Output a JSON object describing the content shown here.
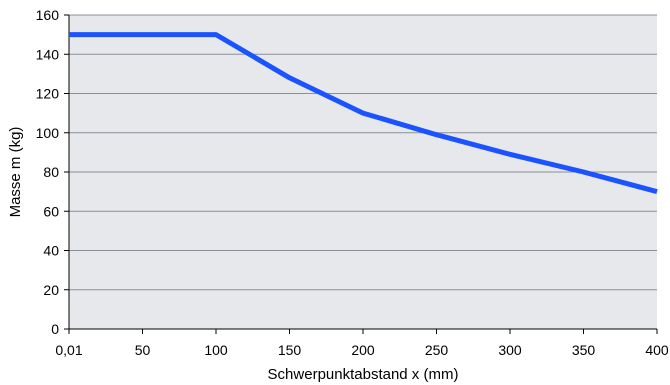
{
  "chart_data": {
    "type": "line",
    "title": "",
    "xlabel": "Schwerpunktabstand x (mm)",
    "ylabel": "Masse m (kg)",
    "x_tick_labels": [
      "0,01",
      "50",
      "100",
      "150",
      "200",
      "250",
      "300",
      "350",
      "400"
    ],
    "y_ticks": [
      0,
      20,
      40,
      60,
      80,
      100,
      120,
      140,
      160
    ],
    "ylim": [
      0,
      160
    ],
    "grid": true,
    "legend": "none",
    "series": [
      {
        "color": "#1a53ff",
        "x": [
          "0,01",
          "50",
          "100",
          "150",
          "200",
          "250",
          "300",
          "350",
          "400"
        ],
        "values": [
          150,
          150,
          150,
          128,
          110,
          99,
          89,
          80,
          70
        ]
      }
    ],
    "colors": {
      "plot_background": "#e6e8ec",
      "grid": "#8a8f98",
      "axis": "#000000"
    }
  }
}
